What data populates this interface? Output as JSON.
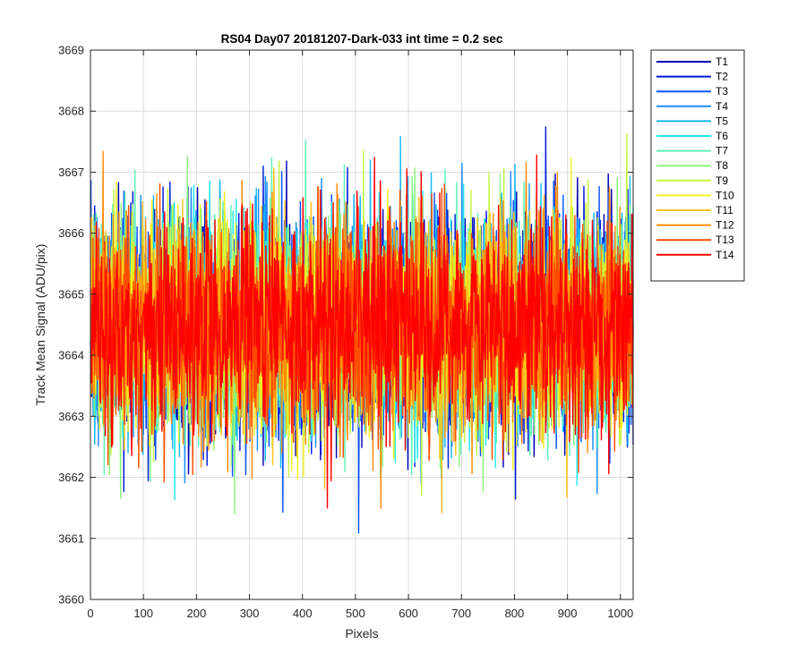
{
  "chart_data": {
    "type": "line",
    "title": "RS04 Day07 20181207-Dark-033 int time = 0.2 sec",
    "xlabel": "Pixels",
    "ylabel": "Track Mean Signal (ADU/pix)",
    "xlim": [
      0,
      1024
    ],
    "ylim": [
      3660,
      3669
    ],
    "xticks": [
      0,
      100,
      200,
      300,
      400,
      500,
      600,
      700,
      800,
      900,
      1000
    ],
    "yticks": [
      3660,
      3661,
      3662,
      3663,
      3664,
      3665,
      3666,
      3667,
      3668,
      3669
    ],
    "grid": true,
    "legend_position": "outside-top-right",
    "noise": {
      "x_start": 1,
      "x_end": 1024,
      "mean": 3664.5,
      "typical_min": 3662.0,
      "typical_max": 3667.0,
      "observed_min": 3660.9,
      "observed_max": 3668.5
    },
    "series": [
      {
        "name": "T1",
        "color": "#0000b3"
      },
      {
        "name": "T2",
        "color": "#0019d9"
      },
      {
        "name": "T3",
        "color": "#0a50ff"
      },
      {
        "name": "T4",
        "color": "#1a8cff"
      },
      {
        "name": "T5",
        "color": "#17b8f0"
      },
      {
        "name": "T6",
        "color": "#21e8ee"
      },
      {
        "name": "T7",
        "color": "#5cf2b5"
      },
      {
        "name": "T8",
        "color": "#8cf57a"
      },
      {
        "name": "T9",
        "color": "#c6f542"
      },
      {
        "name": "T10",
        "color": "#f2f21f"
      },
      {
        "name": "T11",
        "color": "#ffc21a"
      },
      {
        "name": "T12",
        "color": "#ff8c0a"
      },
      {
        "name": "T13",
        "color": "#ff4d00"
      },
      {
        "name": "T14",
        "color": "#ff0000"
      }
    ]
  }
}
